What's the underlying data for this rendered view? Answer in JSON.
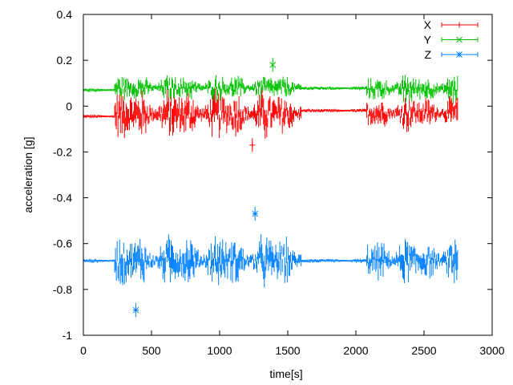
{
  "chart_data": {
    "type": "scatter",
    "style": "errorbars",
    "xlabel": "time[s]",
    "ylabel": "acceleration [g]",
    "xlim": [
      0,
      3000
    ],
    "ylim": [
      -1,
      0.4
    ],
    "xticks": [
      0,
      500,
      1000,
      1500,
      2000,
      2500,
      3000
    ],
    "yticks": [
      -1,
      -0.8,
      -0.6,
      -0.4,
      -0.2,
      0,
      0.2,
      0.4
    ],
    "grid": false,
    "legend_position": "top-right",
    "sample_interval_s": 6,
    "series": [
      {
        "name": "X",
        "color": "#ff0000",
        "marker": "plus",
        "segments": [
          {
            "t": [
              0,
              230
            ],
            "mean": -0.045,
            "spread": 0.004
          },
          {
            "t": [
              230,
              1600
            ],
            "mean": -0.035,
            "spread": 0.07
          },
          {
            "t": [
              1600,
              2080
            ],
            "mean": -0.02,
            "spread": 0.004
          },
          {
            "t": [
              2080,
              2750
            ],
            "mean": -0.03,
            "spread": 0.05
          }
        ],
        "outliers": [
          {
            "t": 1240,
            "y": -0.17
          }
        ]
      },
      {
        "name": "Y",
        "color": "#00c000",
        "marker": "x",
        "segments": [
          {
            "t": [
              0,
              230
            ],
            "mean": 0.07,
            "spread": 0.004
          },
          {
            "t": [
              230,
              1600
            ],
            "mean": 0.08,
            "spread": 0.035
          },
          {
            "t": [
              1600,
              2080
            ],
            "mean": 0.078,
            "spread": 0.004
          },
          {
            "t": [
              2080,
              2750
            ],
            "mean": 0.075,
            "spread": 0.04
          }
        ],
        "outliers": [
          {
            "t": 1390,
            "y": 0.18
          }
        ]
      },
      {
        "name": "Z",
        "color": "#0080ff",
        "marker": "star",
        "segments": [
          {
            "t": [
              0,
              230
            ],
            "mean": -0.675,
            "spread": 0.004
          },
          {
            "t": [
              230,
              1600
            ],
            "mean": -0.675,
            "spread": 0.07
          },
          {
            "t": [
              1600,
              2080
            ],
            "mean": -0.675,
            "spread": 0.004
          },
          {
            "t": [
              2080,
              2750
            ],
            "mean": -0.675,
            "spread": 0.06
          }
        ],
        "outliers": [
          {
            "t": 385,
            "y": -0.89
          },
          {
            "t": 1260,
            "y": -0.47
          }
        ]
      }
    ]
  }
}
